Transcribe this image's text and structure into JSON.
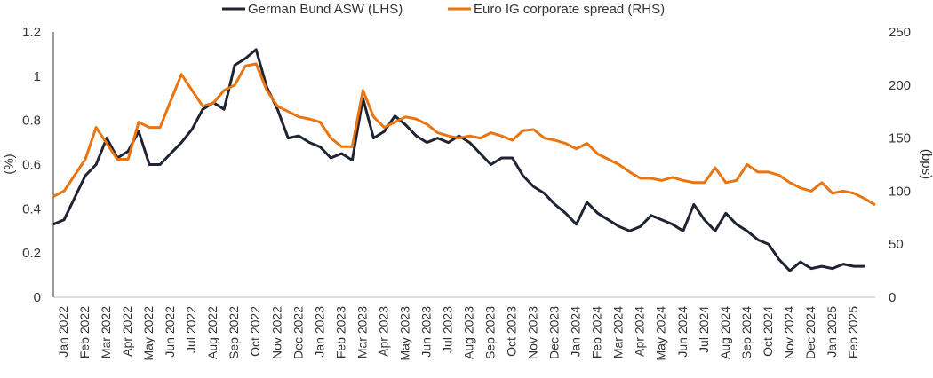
{
  "chart_data": {
    "type": "line",
    "title": "",
    "legend": [
      "German Bund ASW (LHS)",
      "Euro IG corporate spread (RHS)"
    ],
    "legend_position": "top-center",
    "ylabel_left": "(%)",
    "ylabel_right": "(bps)",
    "ylim_left": [
      0,
      1.2
    ],
    "ylim_right": [
      0,
      250
    ],
    "yticks_left": [
      "0",
      "0.2",
      "0.4",
      "0.6",
      "0.8",
      "1",
      "1.2"
    ],
    "yticks_right": [
      "0",
      "50",
      "100",
      "150",
      "200",
      "250"
    ],
    "xticks": [
      "Jan 2022",
      "Feb 2022",
      "Mar 2022",
      "Apr 2022",
      "May 2022",
      "Jun 2022",
      "Jul 2022",
      "Aug 2022",
      "Sep 2022",
      "Oct 2022",
      "Nov 2022",
      "Dec 2022",
      "Jan 2023",
      "Feb 2023",
      "Mar 2023",
      "Apr 2023",
      "May 2023",
      "Jun 2023",
      "Jul 2023",
      "Aug 2023",
      "Sep 2023",
      "Oct 2023",
      "Nov 2023",
      "Dec 2023",
      "Jan 2024",
      "Feb 2024",
      "Mar 2024",
      "Apr 2024",
      "May 2024",
      "Jun 2024",
      "Jul 2024",
      "Aug 2024",
      "Sep 2024",
      "Oct 2024",
      "Nov 2024",
      "Dec 2024",
      "Jan 2025",
      "Feb 2025"
    ],
    "x_unit": "months since Jan 2022 (step 0.5)",
    "series": [
      {
        "name": "German Bund ASW (LHS)",
        "axis": "left",
        "color": "#1f2433",
        "values": [
          0.33,
          0.35,
          0.45,
          0.55,
          0.6,
          0.72,
          0.63,
          0.66,
          0.75,
          0.6,
          0.6,
          0.65,
          0.7,
          0.76,
          0.85,
          0.88,
          0.85,
          1.05,
          1.08,
          1.12,
          0.95,
          0.85,
          0.72,
          0.73,
          0.7,
          0.68,
          0.63,
          0.65,
          0.62,
          0.9,
          0.72,
          0.75,
          0.82,
          0.78,
          0.73,
          0.7,
          0.72,
          0.7,
          0.73,
          0.7,
          0.65,
          0.6,
          0.63,
          0.63,
          0.55,
          0.5,
          0.47,
          0.42,
          0.38,
          0.33,
          0.43,
          0.38,
          0.35,
          0.32,
          0.3,
          0.32,
          0.37,
          0.35,
          0.33,
          0.3,
          0.42,
          0.35,
          0.3,
          0.38,
          0.33,
          0.3,
          0.26,
          0.24,
          0.17,
          0.12,
          0.16,
          0.13,
          0.14,
          0.13,
          0.15,
          0.14,
          0.14
        ]
      },
      {
        "name": "Euro IG corporate spread (RHS)",
        "axis": "right",
        "color": "#e87511",
        "values": [
          95,
          100,
          115,
          130,
          160,
          145,
          130,
          130,
          165,
          160,
          160,
          185,
          210,
          195,
          180,
          183,
          195,
          200,
          218,
          220,
          195,
          180,
          175,
          170,
          168,
          165,
          150,
          142,
          142,
          195,
          170,
          160,
          165,
          170,
          168,
          163,
          155,
          152,
          150,
          152,
          150,
          155,
          152,
          148,
          157,
          158,
          150,
          148,
          145,
          140,
          145,
          135,
          130,
          125,
          118,
          112,
          112,
          110,
          113,
          110,
          108,
          108,
          122,
          108,
          110,
          125,
          118,
          118,
          115,
          108,
          103,
          100,
          108,
          98,
          100,
          98,
          93,
          87
        ]
      }
    ]
  }
}
